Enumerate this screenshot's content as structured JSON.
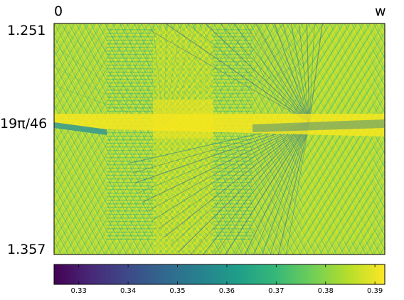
{
  "chart_data": {
    "type": "heatmap",
    "x_axis": {
      "start_label": "0",
      "end_label": "w"
    },
    "y_axis": {
      "top_label": "1.251",
      "middle_label": "19π/46",
      "bottom_label": "1.357"
    },
    "colorbar": {
      "colormap": "viridis",
      "range": [
        0.325,
        0.392
      ],
      "ticks": [
        "0.33",
        "0.34",
        "0.35",
        "0.36",
        "0.37",
        "0.38",
        "0.39"
      ],
      "tick_values": [
        0.33,
        0.34,
        0.35,
        0.36,
        0.37,
        0.38,
        0.39
      ]
    },
    "colors": {
      "viridis": [
        "#440154",
        "#482878",
        "#3e4989",
        "#31688e",
        "#26828e",
        "#1f9e89",
        "#35b779",
        "#6ece58",
        "#b5de2b",
        "#fde725"
      ]
    }
  }
}
